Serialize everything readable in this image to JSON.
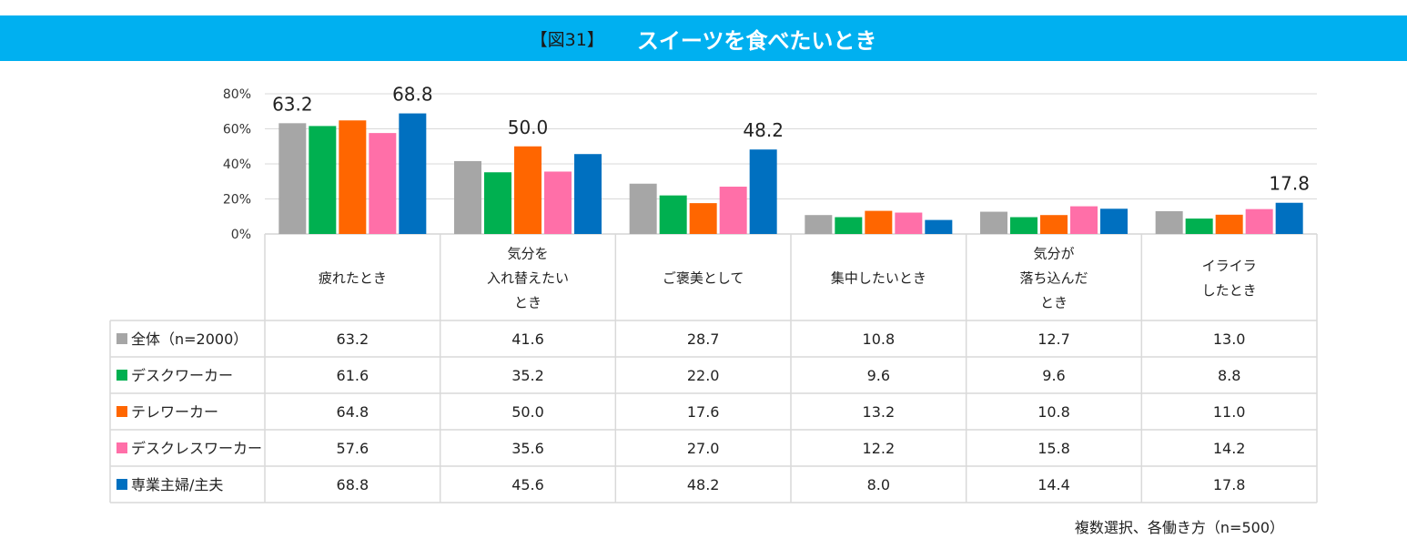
{
  "header": {
    "figure_label": "【図31】",
    "title": "スイーツを食べたいとき"
  },
  "chart_data": {
    "type": "bar",
    "title": "スイーツを食べたいとき",
    "ylim": [
      0,
      80
    ],
    "yticks": [
      "0%",
      "20%",
      "40%",
      "60%",
      "80%"
    ],
    "categories": [
      [
        "疲れたとき"
      ],
      [
        "気分を",
        "入れ替えたい",
        "とき"
      ],
      [
        "ご褒美として"
      ],
      [
        "集中したいとき"
      ],
      [
        "気分が",
        "落ち込んだ",
        "とき"
      ],
      [
        "イライラ",
        "したとき"
      ]
    ],
    "series": [
      {
        "name": "全体（n=2000）",
        "color": "#a6a6a6",
        "values": [
          63.2,
          41.6,
          28.7,
          10.8,
          12.7,
          13.0
        ]
      },
      {
        "name": "デスクワーカー",
        "color": "#00b050",
        "values": [
          61.6,
          35.2,
          22.0,
          9.6,
          9.6,
          8.8
        ]
      },
      {
        "name": "テレワーカー",
        "color": "#ff6600",
        "values": [
          64.8,
          50.0,
          17.6,
          13.2,
          10.8,
          11.0
        ]
      },
      {
        "name": "デスクレスワーカー",
        "color": "#ff6fa8",
        "values": [
          57.6,
          35.6,
          27.0,
          12.2,
          15.8,
          14.2
        ]
      },
      {
        "name": "専業主婦/主夫",
        "color": "#0070c0",
        "values": [
          68.8,
          45.6,
          48.2,
          8.0,
          14.4,
          17.8
        ]
      }
    ],
    "annotations": [
      {
        "series": 0,
        "category": 0,
        "text": "63.2"
      },
      {
        "series": 4,
        "category": 0,
        "text": "68.8"
      },
      {
        "series": 2,
        "category": 1,
        "text": "50.0"
      },
      {
        "series": 4,
        "category": 2,
        "text": "48.2"
      },
      {
        "series": 4,
        "category": 5,
        "text": "17.8"
      }
    ],
    "table": {
      "rows": [
        [
          "63.2",
          "41.6",
          "28.7",
          "10.8",
          "12.7",
          "13.0"
        ],
        [
          "61.6",
          "35.2",
          "22.0",
          "9.6",
          "9.6",
          "8.8"
        ],
        [
          "64.8",
          "50.0",
          "17.6",
          "13.2",
          "10.8",
          "11.0"
        ],
        [
          "57.6",
          "35.6",
          "27.0",
          "12.2",
          "15.8",
          "14.2"
        ],
        [
          "68.8",
          "45.6",
          "48.2",
          "8.0",
          "14.4",
          "17.8"
        ]
      ]
    }
  },
  "footnote": "複数選択、各働き方（n=500）"
}
